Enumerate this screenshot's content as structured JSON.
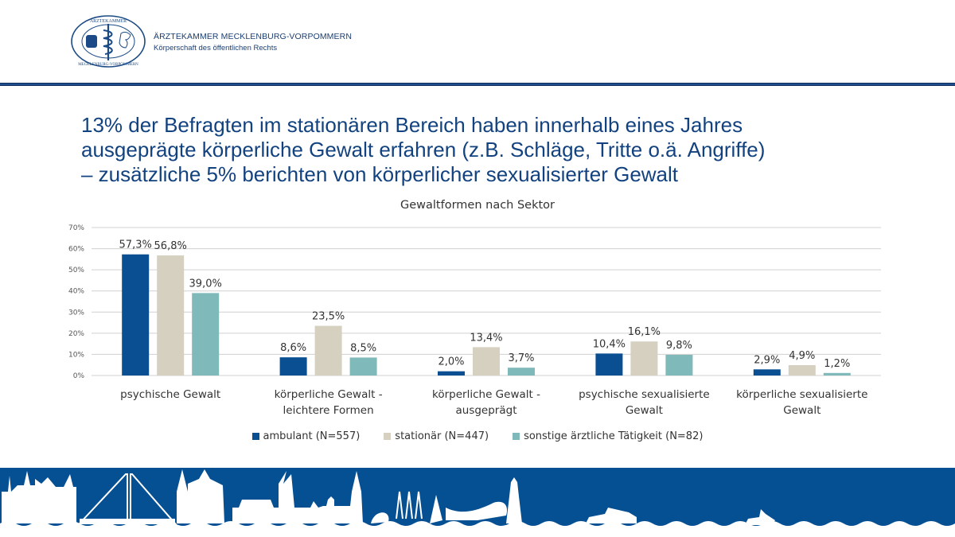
{
  "header": {
    "org_name": "ÄRZTEKAMMER MECKLENBURG-VORPOMMERN",
    "org_subtitle": "Körperschaft des öffentlichen Rechts",
    "logo_top_text": "ÄRZTEKAMMER",
    "logo_bottom_text": "MECKLENBURG-VORPOMMERN"
  },
  "headline": {
    "lines": [
      "13% der Befragten im stationären Bereich haben innerhalb eines Jahres",
      "ausgeprägte körperliche Gewalt erfahren (z.B. Schläge, Tritte o.ä. Angriffe)",
      "– zusätzliche 5% berichten von körperlicher sexualisierter Gewalt"
    ]
  },
  "colors": {
    "brand_blue": "#12427f",
    "footer_blue": "#054f93",
    "ambulant": "#0a4f92",
    "stationaer": "#d6d0c0",
    "sonstige": "#7fb9b9"
  },
  "chart_data": {
    "type": "bar",
    "title": "Gewaltformen nach Sektor",
    "xlabel": "",
    "ylabel": "",
    "ylim": [
      0,
      70
    ],
    "yticks": [
      "0%",
      "10%",
      "20%",
      "30%",
      "40%",
      "50%",
      "60%",
      "70%"
    ],
    "ytick_values": [
      0,
      10,
      20,
      30,
      40,
      50,
      60,
      70
    ],
    "grid": true,
    "legend_position": "bottom",
    "categories": [
      [
        "psychische Gewalt"
      ],
      [
        "körperliche Gewalt -",
        "leichtere Formen"
      ],
      [
        "körperliche Gewalt -",
        "ausgeprägt"
      ],
      [
        "psychische sexualisierte",
        "Gewalt"
      ],
      [
        "körperliche sexualisierte",
        "Gewalt"
      ]
    ],
    "series": [
      {
        "name": "ambulant (N=557)",
        "values": [
          57.3,
          8.6,
          2.0,
          10.4,
          2.9
        ],
        "labels": [
          "57,3%",
          "8,6%",
          "2,0%",
          "10,4%",
          "2,9%"
        ]
      },
      {
        "name": "stationär (N=447)",
        "values": [
          56.8,
          23.5,
          13.4,
          16.1,
          4.9
        ],
        "labels": [
          "56,8%",
          "23,5%",
          "13,4%",
          "16,1%",
          "4,9%"
        ]
      },
      {
        "name": "sonstige ärztliche Tätigkeit (N=82)",
        "values": [
          39.0,
          8.5,
          3.7,
          9.8,
          1.2
        ],
        "labels": [
          "39,0%",
          "8,5%",
          "3,7%",
          "9,8%",
          "1,2%"
        ]
      }
    ]
  }
}
